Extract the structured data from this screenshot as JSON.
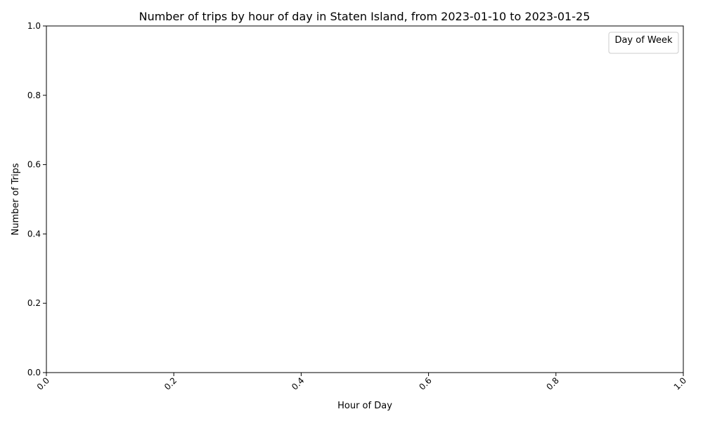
{
  "chart_data": {
    "type": "line",
    "title": "Number of trips by hour of day in Staten Island, from 2023-01-10 to 2023-01-25",
    "xlabel": "Hour of Day",
    "ylabel": "Number of Trips",
    "xlim": [
      0.0,
      1.0
    ],
    "ylim": [
      0.0,
      1.0
    ],
    "x_ticks": [
      "0.0",
      "0.2",
      "0.4",
      "0.6",
      "0.8",
      "1.0"
    ],
    "y_ticks": [
      "0.0",
      "0.2",
      "0.4",
      "0.6",
      "0.8",
      "1.0"
    ],
    "x_tick_rotation": 45,
    "grid": false,
    "legend": {
      "title": "Day of Week",
      "placement": "upper-right",
      "entries": []
    },
    "series": []
  },
  "colors": {
    "axes": "#000000",
    "background": "#ffffff",
    "legend_border": "#cccccc"
  }
}
